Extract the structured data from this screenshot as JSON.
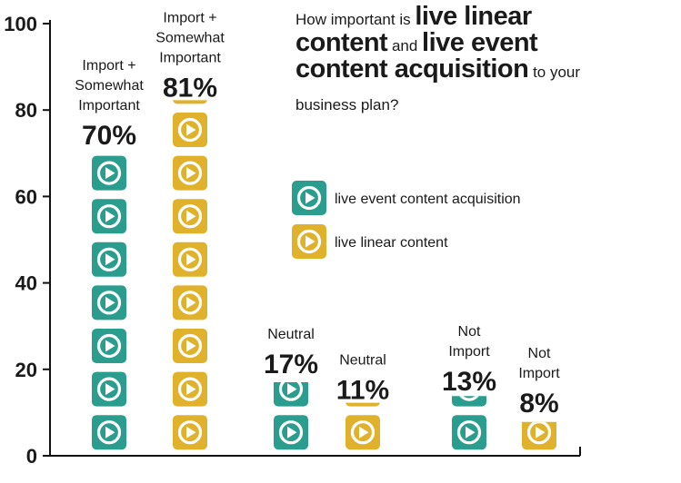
{
  "title": {
    "p1": "How important is ",
    "b1": "live linear",
    "b2": "content",
    "p2": " and ",
    "b3": "live event",
    "b4": "content acquisition",
    "p3": " to your",
    "p4": "business plan?"
  },
  "colors": {
    "teal": "#2a9d8f",
    "gold": "#e0b12a",
    "axis": "#111111"
  },
  "icon": "play-icon",
  "chart_data": {
    "type": "bar",
    "categories": [
      "Import + Somewhat Important",
      "Neutral",
      "Not Import"
    ],
    "series": [
      {
        "name": "live event content acquisition",
        "values": [
          70,
          17,
          13
        ],
        "color": "#2a9d8f"
      },
      {
        "name": "live linear content",
        "values": [
          81,
          11,
          8
        ],
        "color": "#e0b12a"
      }
    ],
    "bars": [
      {
        "series": "live event content acquisition",
        "value": 70,
        "value_label": "70%",
        "category_label": [
          "Import +",
          "Somewhat",
          "Important"
        ]
      },
      {
        "series": "live linear content",
        "value": 81,
        "value_label": "81%",
        "category_label": [
          "Import +",
          "Somewhat",
          "Important"
        ]
      },
      {
        "series": "live event content acquisition",
        "value": 17,
        "value_label": "17%",
        "category_label": [
          "Neutral"
        ]
      },
      {
        "series": "live linear content",
        "value": 11,
        "value_label": "11%",
        "category_label": [
          "Neutral"
        ]
      },
      {
        "series": "live event content acquisition",
        "value": 13,
        "value_label": "13%",
        "category_label": [
          "Not",
          "Import"
        ]
      },
      {
        "series": "live linear content",
        "value": 8,
        "value_label": "8%",
        "category_label": [
          "Not",
          "Import"
        ]
      }
    ],
    "yticks": [
      0,
      20,
      40,
      60,
      80,
      100
    ],
    "ylim": [
      0,
      100
    ],
    "unit_per_icon": 10,
    "legend": [
      {
        "label": "live event content acquisition",
        "color": "#2a9d8f"
      },
      {
        "label": "live linear content",
        "color": "#e0b12a"
      }
    ],
    "legend_placement": "right-middle",
    "grid": false
  }
}
